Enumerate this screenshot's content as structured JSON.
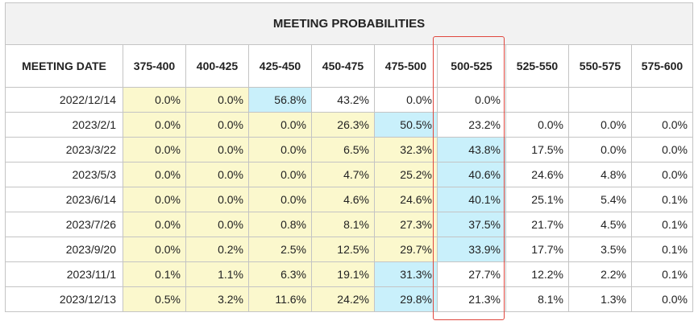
{
  "table": {
    "title": "MEETING PROBABILITIES",
    "headers": [
      "MEETING DATE",
      "375-400",
      "400-425",
      "425-450",
      "450-475",
      "475-500",
      "500-525",
      "525-550",
      "550-575",
      "575-600"
    ],
    "highlighted_column": "500-525",
    "colors": {
      "yellow": "#fbf8cd",
      "blue": "#c9f0fb",
      "highlight_border": "#e0473e"
    },
    "rows": [
      {
        "date": "2022/12/14",
        "cells": [
          [
            "0.0%",
            "y"
          ],
          [
            "0.0%",
            "y"
          ],
          [
            "56.8%",
            "b"
          ],
          [
            "43.2%",
            "w"
          ],
          [
            "0.0%",
            "w"
          ],
          [
            "0.0%",
            "w"
          ],
          [
            "",
            "w"
          ],
          [
            "",
            "w"
          ],
          [
            "",
            "w"
          ]
        ]
      },
      {
        "date": "2023/2/1",
        "cells": [
          [
            "0.0%",
            "y"
          ],
          [
            "0.0%",
            "y"
          ],
          [
            "0.0%",
            "y"
          ],
          [
            "26.3%",
            "y"
          ],
          [
            "50.5%",
            "b"
          ],
          [
            "23.2%",
            "w"
          ],
          [
            "0.0%",
            "w"
          ],
          [
            "0.0%",
            "w"
          ],
          [
            "0.0%",
            "w"
          ]
        ]
      },
      {
        "date": "2023/3/22",
        "cells": [
          [
            "0.0%",
            "y"
          ],
          [
            "0.0%",
            "y"
          ],
          [
            "0.0%",
            "y"
          ],
          [
            "6.5%",
            "y"
          ],
          [
            "32.3%",
            "y"
          ],
          [
            "43.8%",
            "b"
          ],
          [
            "17.5%",
            "w"
          ],
          [
            "0.0%",
            "w"
          ],
          [
            "0.0%",
            "w"
          ]
        ]
      },
      {
        "date": "2023/5/3",
        "cells": [
          [
            "0.0%",
            "y"
          ],
          [
            "0.0%",
            "y"
          ],
          [
            "0.0%",
            "y"
          ],
          [
            "4.7%",
            "y"
          ],
          [
            "25.2%",
            "y"
          ],
          [
            "40.6%",
            "b"
          ],
          [
            "24.6%",
            "w"
          ],
          [
            "4.8%",
            "w"
          ],
          [
            "0.0%",
            "w"
          ]
        ]
      },
      {
        "date": "2023/6/14",
        "cells": [
          [
            "0.0%",
            "y"
          ],
          [
            "0.0%",
            "y"
          ],
          [
            "0.0%",
            "y"
          ],
          [
            "4.6%",
            "y"
          ],
          [
            "24.6%",
            "y"
          ],
          [
            "40.1%",
            "b"
          ],
          [
            "25.1%",
            "w"
          ],
          [
            "5.4%",
            "w"
          ],
          [
            "0.1%",
            "w"
          ]
        ]
      },
      {
        "date": "2023/7/26",
        "cells": [
          [
            "0.0%",
            "y"
          ],
          [
            "0.0%",
            "y"
          ],
          [
            "0.8%",
            "y"
          ],
          [
            "8.1%",
            "y"
          ],
          [
            "27.3%",
            "y"
          ],
          [
            "37.5%",
            "b"
          ],
          [
            "21.7%",
            "w"
          ],
          [
            "4.5%",
            "w"
          ],
          [
            "0.1%",
            "w"
          ]
        ]
      },
      {
        "date": "2023/9/20",
        "cells": [
          [
            "0.0%",
            "y"
          ],
          [
            "0.2%",
            "y"
          ],
          [
            "2.5%",
            "y"
          ],
          [
            "12.5%",
            "y"
          ],
          [
            "29.7%",
            "y"
          ],
          [
            "33.9%",
            "b"
          ],
          [
            "17.7%",
            "w"
          ],
          [
            "3.5%",
            "w"
          ],
          [
            "0.1%",
            "w"
          ]
        ]
      },
      {
        "date": "2023/11/1",
        "cells": [
          [
            "0.1%",
            "y"
          ],
          [
            "1.1%",
            "y"
          ],
          [
            "6.3%",
            "y"
          ],
          [
            "19.1%",
            "y"
          ],
          [
            "31.3%",
            "b"
          ],
          [
            "27.7%",
            "w"
          ],
          [
            "12.2%",
            "w"
          ],
          [
            "2.2%",
            "w"
          ],
          [
            "0.1%",
            "w"
          ]
        ]
      },
      {
        "date": "2023/12/13",
        "cells": [
          [
            "0.5%",
            "y"
          ],
          [
            "3.2%",
            "y"
          ],
          [
            "11.6%",
            "y"
          ],
          [
            "24.2%",
            "y"
          ],
          [
            "29.8%",
            "b"
          ],
          [
            "21.3%",
            "w"
          ],
          [
            "8.1%",
            "w"
          ],
          [
            "1.3%",
            "w"
          ],
          [
            "0.0%",
            "w"
          ]
        ]
      }
    ]
  }
}
